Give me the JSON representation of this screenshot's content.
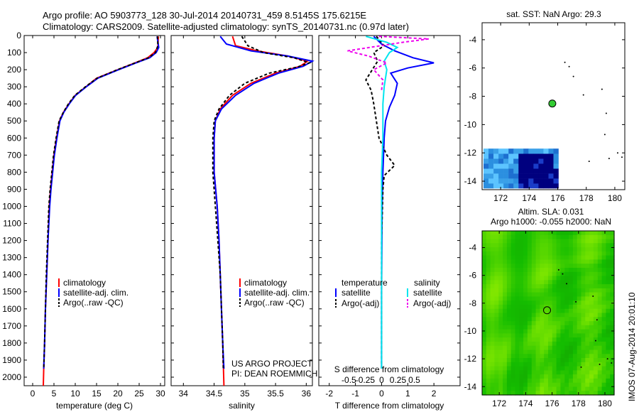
{
  "header": {
    "line1": "Argo profile: AO 5903773_128 30-Jul-2014 20140731_459 8.5145S 175.6215E",
    "line2": "Climatology: CARS2009. Satellite-adjusted climatology: synTS_20140731.nc (0.97d later)"
  },
  "colors": {
    "clim": "#ff0000",
    "sat": "#0000ff",
    "argo": "#000000",
    "sal_sat": "#00e5ee",
    "sal_argo": "#ee00ee",
    "sst_dark": "#00007f",
    "sla_green": "#22c800"
  },
  "chart_data": [
    {
      "type": "line",
      "name": "temperature-profile",
      "xlabel": "temperature (deg C)",
      "ylabel": "",
      "xlim": [
        -2,
        31
      ],
      "ylim": [
        2050,
        0
      ],
      "xticks": [
        "0",
        "5",
        "10",
        "15",
        "20",
        "25",
        "30"
      ],
      "xtick_values": [
        0,
        5,
        10,
        15,
        20,
        25,
        30
      ],
      "yticks": [
        "0",
        "100",
        "200",
        "300",
        "400",
        "500",
        "600",
        "700",
        "800",
        "900",
        "1000",
        "1100",
        "1200",
        "1300",
        "1400",
        "1500",
        "1600",
        "1700",
        "1800",
        "1900",
        "2000"
      ],
      "ytick_values": [
        0,
        100,
        200,
        300,
        400,
        500,
        600,
        700,
        800,
        900,
        1000,
        1100,
        1200,
        1300,
        1400,
        1500,
        1600,
        1700,
        1800,
        1900,
        2000
      ],
      "legend": [
        "climatology",
        "satellite-adj. clim.",
        "Argo(..raw -QC)"
      ],
      "series": [
        {
          "name": "climatology",
          "color": "#ff0000",
          "dashed": false,
          "points": [
            [
              29.5,
              5
            ],
            [
              29.4,
              70
            ],
            [
              28.5,
              100
            ],
            [
              27,
              130
            ],
            [
              24,
              160
            ],
            [
              20,
              200
            ],
            [
              15,
              250
            ],
            [
              12.5,
              300
            ],
            [
              10,
              350
            ],
            [
              8.5,
              400
            ],
            [
              7.2,
              450
            ],
            [
              6.3,
              500
            ],
            [
              5.6,
              600
            ],
            [
              5,
              700
            ],
            [
              4.6,
              800
            ],
            [
              4.2,
              900
            ],
            [
              3.9,
              1000
            ],
            [
              3.6,
              1200
            ],
            [
              3.3,
              1400
            ],
            [
              3,
              1600
            ],
            [
              2.8,
              1800
            ],
            [
              2.6,
              1950
            ],
            [
              2.5,
              2050
            ]
          ]
        },
        {
          "name": "satellite-adj. clim.",
          "color": "#0000ff",
          "dashed": false,
          "points": [
            [
              29.2,
              5
            ],
            [
              29.6,
              70
            ],
            [
              29,
              100
            ],
            [
              27.5,
              130
            ],
            [
              24.3,
              160
            ],
            [
              20.2,
              200
            ],
            [
              15.3,
              250
            ],
            [
              12.6,
              300
            ],
            [
              10.1,
              350
            ],
            [
              8.6,
              400
            ],
            [
              7.3,
              450
            ],
            [
              6.4,
              500
            ],
            [
              5.7,
              600
            ],
            [
              5.1,
              700
            ],
            [
              4.7,
              800
            ],
            [
              4.3,
              900
            ],
            [
              4,
              1000
            ],
            [
              3.6,
              1200
            ],
            [
              3.3,
              1400
            ],
            [
              3,
              1600
            ],
            [
              2.8,
              1800
            ],
            [
              2.6,
              1950
            ]
          ]
        },
        {
          "name": "Argo(..raw -QC)",
          "color": "#000000",
          "dashed": true,
          "points": [
            [
              29.3,
              5
            ],
            [
              29.4,
              60
            ],
            [
              28.8,
              100
            ],
            [
              27.2,
              130
            ],
            [
              24.1,
              160
            ],
            [
              19.9,
              200
            ],
            [
              15.1,
              250
            ],
            [
              12.4,
              300
            ],
            [
              9.9,
              350
            ],
            [
              8.4,
              400
            ],
            [
              7.2,
              450
            ],
            [
              6.2,
              500
            ],
            [
              5.5,
              600
            ],
            [
              4.9,
              700
            ],
            [
              4.5,
              800
            ],
            [
              4.1,
              900
            ],
            [
              3.8,
              1000
            ],
            [
              3.5,
              1200
            ],
            [
              3.2,
              1400
            ],
            [
              3,
              1600
            ],
            [
              2.8,
              1800
            ],
            [
              2.6,
              1950
            ]
          ]
        }
      ]
    },
    {
      "type": "line",
      "name": "salinity-profile",
      "xlabel": "salinity",
      "xlim": [
        33.8,
        36.1
      ],
      "ylim": [
        2050,
        0
      ],
      "xticks": [
        "34",
        "34.5",
        "35",
        "35.5",
        "36"
      ],
      "xtick_values": [
        34,
        34.5,
        35,
        35.5,
        36
      ],
      "legend": [
        "climatology",
        "satellite-adj. clim.",
        "Argo(..raw -QC)"
      ],
      "credit1": "US ARGO PROJECT",
      "credit2": "PI: DEAN ROEMMICH",
      "series": [
        {
          "name": "climatology",
          "color": "#ff0000",
          "dashed": false,
          "points": [
            [
              34.8,
              5
            ],
            [
              34.85,
              60
            ],
            [
              35.2,
              90
            ],
            [
              35.7,
              120
            ],
            [
              36.02,
              150
            ],
            [
              35.9,
              180
            ],
            [
              35.5,
              220
            ],
            [
              35.1,
              280
            ],
            [
              34.8,
              350
            ],
            [
              34.6,
              430
            ],
            [
              34.52,
              500
            ],
            [
              34.5,
              600
            ],
            [
              34.5,
              800
            ],
            [
              34.55,
              1000
            ],
            [
              34.58,
              1200
            ],
            [
              34.6,
              1400
            ],
            [
              34.62,
              1600
            ],
            [
              34.64,
              1800
            ],
            [
              34.66,
              2050
            ]
          ]
        },
        {
          "name": "satellite-adj. clim.",
          "color": "#0000ff",
          "dashed": false,
          "points": [
            [
              34.6,
              5
            ],
            [
              34.7,
              50
            ],
            [
              35.1,
              90
            ],
            [
              35.7,
              120
            ],
            [
              36.1,
              150
            ],
            [
              35.95,
              180
            ],
            [
              35.55,
              220
            ],
            [
              35.15,
              280
            ],
            [
              34.85,
              350
            ],
            [
              34.62,
              430
            ],
            [
              34.52,
              500
            ],
            [
              34.5,
              600
            ],
            [
              34.5,
              800
            ],
            [
              34.55,
              1000
            ],
            [
              34.58,
              1200
            ],
            [
              34.6,
              1400
            ],
            [
              34.62,
              1600
            ],
            [
              34.64,
              1800
            ],
            [
              34.66,
              1950
            ]
          ]
        },
        {
          "name": "Argo(..raw -QC)",
          "color": "#000000",
          "dashed": true,
          "points": [
            [
              34.95,
              5
            ],
            [
              35.05,
              60
            ],
            [
              35.3,
              100
            ],
            [
              35.8,
              130
            ],
            [
              36.05,
              160
            ],
            [
              35.85,
              185
            ],
            [
              35.4,
              220
            ],
            [
              35.0,
              280
            ],
            [
              34.75,
              350
            ],
            [
              34.58,
              430
            ],
            [
              34.5,
              500
            ],
            [
              34.48,
              600
            ],
            [
              34.48,
              800
            ],
            [
              34.52,
              1000
            ],
            [
              34.56,
              1200
            ],
            [
              34.6,
              1400
            ],
            [
              34.62,
              1600
            ],
            [
              34.64,
              1800
            ],
            [
              34.65,
              1950
            ]
          ]
        }
      ]
    },
    {
      "type": "line",
      "name": "difference-profile",
      "xlabel": "T difference from climatology",
      "xlabel_top": "S difference from climatology",
      "xlim": [
        -2.4,
        3
      ],
      "ylim": [
        2050,
        0
      ],
      "xticks": [
        "-2",
        "-1",
        "0",
        "1",
        "2"
      ],
      "xtick_values": [
        -2,
        -1,
        0,
        1,
        2
      ],
      "sticks": [
        "-0.5",
        "-0.25",
        "0",
        "0.25",
        "0.5"
      ],
      "stick_values": [
        -1.25,
        -0.625,
        0,
        0.625,
        1.25
      ],
      "legend_headers": [
        "temperature",
        "salinity"
      ],
      "legend_t": [
        "satellite",
        "Argo(-adj)"
      ],
      "legend_s": [
        "satellite",
        "Argo(-adj)"
      ],
      "series": [
        {
          "name": "T satellite",
          "color": "#0000ff",
          "dashed": false,
          "points": [
            [
              -0.3,
              5
            ],
            [
              0,
              50
            ],
            [
              0.5,
              90
            ],
            [
              1.2,
              130
            ],
            [
              2.0,
              160
            ],
            [
              1.0,
              190
            ],
            [
              0.35,
              220
            ],
            [
              0.6,
              280
            ],
            [
              0.5,
              350
            ],
            [
              0.3,
              420
            ],
            [
              0.15,
              500
            ],
            [
              0.1,
              600
            ],
            [
              0.05,
              800
            ],
            [
              0.02,
              1000
            ],
            [
              0,
              1500
            ],
            [
              0,
              1950
            ]
          ]
        },
        {
          "name": "T Argo(-adj)",
          "color": "#000000",
          "dashed": true,
          "points": [
            [
              -0.2,
              5
            ],
            [
              0.1,
              60
            ],
            [
              -0.3,
              100
            ],
            [
              -0.15,
              150
            ],
            [
              -0.6,
              260
            ],
            [
              -0.4,
              320
            ],
            [
              -0.3,
              400
            ],
            [
              -0.2,
              500
            ],
            [
              -0.1,
              600
            ],
            [
              0.2,
              700
            ],
            [
              0.5,
              760
            ],
            [
              0.1,
              820
            ],
            [
              0.05,
              900
            ],
            [
              0,
              1200
            ],
            [
              0,
              1950
            ]
          ]
        },
        {
          "name": "S satellite",
          "color": "#00e5ee",
          "dashed": false,
          "points": [
            [
              -0.6,
              5
            ],
            [
              0.2,
              40
            ],
            [
              0.6,
              70
            ],
            [
              0.3,
              100
            ],
            [
              0.1,
              150
            ],
            [
              0.2,
              200
            ],
            [
              0.1,
              300
            ],
            [
              0.05,
              400
            ],
            [
              0.05,
              600
            ],
            [
              0,
              800
            ],
            [
              0,
              1100
            ],
            [
              0,
              1500
            ],
            [
              0,
              1950
            ]
          ]
        },
        {
          "name": "S Argo(-adj)",
          "color": "#ee00ee",
          "dashed": true,
          "points": [
            [
              -0.1,
              5
            ],
            [
              1.8,
              20
            ],
            [
              0.8,
              40
            ],
            [
              -1.3,
              90
            ],
            [
              -0.5,
              120
            ],
            [
              0.2,
              160
            ],
            [
              -0.3,
              200
            ],
            [
              0.05,
              260
            ],
            [
              0,
              320
            ]
          ]
        }
      ]
    },
    {
      "type": "heatmap",
      "name": "sst-map",
      "title": "sat. SST: NaN Argo: 29.3",
      "xlim": [
        170.7,
        180.7
      ],
      "ylim": [
        -14.6,
        -2.8
      ],
      "xticks": [
        "172",
        "174",
        "176",
        "178",
        "180"
      ],
      "xtick_values": [
        172,
        174,
        176,
        178,
        180
      ],
      "yticks": [
        "-4",
        "-6",
        "-8",
        "-10",
        "-12",
        "-14"
      ],
      "ytick_values": [
        -4,
        -6,
        -8,
        -10,
        -12,
        -14
      ],
      "argo_position": [
        175.62,
        -8.51
      ]
    },
    {
      "type": "heatmap",
      "name": "sla-map",
      "title1": "Altim. SLA: 0.031",
      "title2": "Argo h1000: -0.055 h2000: NaN",
      "xlim": [
        170.7,
        180.7
      ],
      "ylim": [
        -14.6,
        -2.8
      ],
      "xticks": [
        "172",
        "174",
        "176",
        "178",
        "180"
      ],
      "xtick_values": [
        172,
        174,
        176,
        178,
        180
      ],
      "yticks": [
        "-4",
        "-6",
        "-8",
        "-10",
        "-12",
        "-14"
      ],
      "ytick_values": [
        -4,
        -6,
        -8,
        -10,
        -12,
        -14
      ],
      "argo_position": [
        175.62,
        -8.51
      ]
    }
  ],
  "footer": {
    "stamp": "IMOS 07-Aug-2014 20:01:10"
  }
}
